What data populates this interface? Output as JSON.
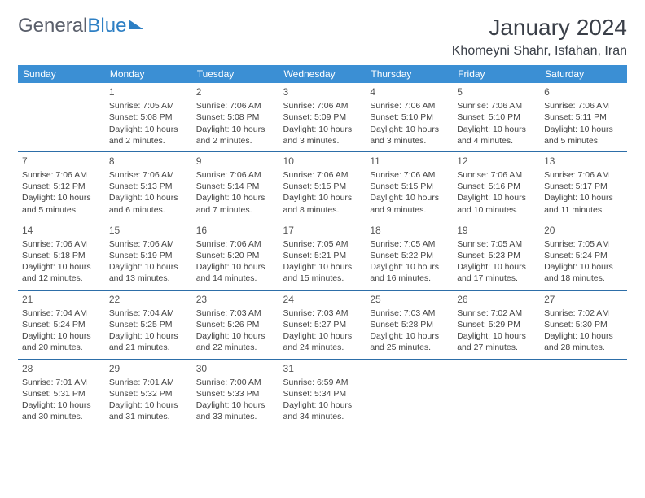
{
  "brand": {
    "part1": "General",
    "part2": "Blue"
  },
  "title": "January 2024",
  "location": "Khomeyni Shahr, Isfahan, Iran",
  "colors": {
    "header_bg": "#3b8fd4",
    "header_text": "#ffffff",
    "rule": "#2d6ea8",
    "text": "#444444",
    "title_text": "#3a3f48"
  },
  "weekdays": [
    "Sunday",
    "Monday",
    "Tuesday",
    "Wednesday",
    "Thursday",
    "Friday",
    "Saturday"
  ],
  "weeks": [
    [
      null,
      {
        "n": "1",
        "sr": "7:05 AM",
        "ss": "5:08 PM",
        "dl": "10 hours and 2 minutes."
      },
      {
        "n": "2",
        "sr": "7:06 AM",
        "ss": "5:08 PM",
        "dl": "10 hours and 2 minutes."
      },
      {
        "n": "3",
        "sr": "7:06 AM",
        "ss": "5:09 PM",
        "dl": "10 hours and 3 minutes."
      },
      {
        "n": "4",
        "sr": "7:06 AM",
        "ss": "5:10 PM",
        "dl": "10 hours and 3 minutes."
      },
      {
        "n": "5",
        "sr": "7:06 AM",
        "ss": "5:10 PM",
        "dl": "10 hours and 4 minutes."
      },
      {
        "n": "6",
        "sr": "7:06 AM",
        "ss": "5:11 PM",
        "dl": "10 hours and 5 minutes."
      }
    ],
    [
      {
        "n": "7",
        "sr": "7:06 AM",
        "ss": "5:12 PM",
        "dl": "10 hours and 5 minutes."
      },
      {
        "n": "8",
        "sr": "7:06 AM",
        "ss": "5:13 PM",
        "dl": "10 hours and 6 minutes."
      },
      {
        "n": "9",
        "sr": "7:06 AM",
        "ss": "5:14 PM",
        "dl": "10 hours and 7 minutes."
      },
      {
        "n": "10",
        "sr": "7:06 AM",
        "ss": "5:15 PM",
        "dl": "10 hours and 8 minutes."
      },
      {
        "n": "11",
        "sr": "7:06 AM",
        "ss": "5:15 PM",
        "dl": "10 hours and 9 minutes."
      },
      {
        "n": "12",
        "sr": "7:06 AM",
        "ss": "5:16 PM",
        "dl": "10 hours and 10 minutes."
      },
      {
        "n": "13",
        "sr": "7:06 AM",
        "ss": "5:17 PM",
        "dl": "10 hours and 11 minutes."
      }
    ],
    [
      {
        "n": "14",
        "sr": "7:06 AM",
        "ss": "5:18 PM",
        "dl": "10 hours and 12 minutes."
      },
      {
        "n": "15",
        "sr": "7:06 AM",
        "ss": "5:19 PM",
        "dl": "10 hours and 13 minutes."
      },
      {
        "n": "16",
        "sr": "7:06 AM",
        "ss": "5:20 PM",
        "dl": "10 hours and 14 minutes."
      },
      {
        "n": "17",
        "sr": "7:05 AM",
        "ss": "5:21 PM",
        "dl": "10 hours and 15 minutes."
      },
      {
        "n": "18",
        "sr": "7:05 AM",
        "ss": "5:22 PM",
        "dl": "10 hours and 16 minutes."
      },
      {
        "n": "19",
        "sr": "7:05 AM",
        "ss": "5:23 PM",
        "dl": "10 hours and 17 minutes."
      },
      {
        "n": "20",
        "sr": "7:05 AM",
        "ss": "5:24 PM",
        "dl": "10 hours and 18 minutes."
      }
    ],
    [
      {
        "n": "21",
        "sr": "7:04 AM",
        "ss": "5:24 PM",
        "dl": "10 hours and 20 minutes."
      },
      {
        "n": "22",
        "sr": "7:04 AM",
        "ss": "5:25 PM",
        "dl": "10 hours and 21 minutes."
      },
      {
        "n": "23",
        "sr": "7:03 AM",
        "ss": "5:26 PM",
        "dl": "10 hours and 22 minutes."
      },
      {
        "n": "24",
        "sr": "7:03 AM",
        "ss": "5:27 PM",
        "dl": "10 hours and 24 minutes."
      },
      {
        "n": "25",
        "sr": "7:03 AM",
        "ss": "5:28 PM",
        "dl": "10 hours and 25 minutes."
      },
      {
        "n": "26",
        "sr": "7:02 AM",
        "ss": "5:29 PM",
        "dl": "10 hours and 27 minutes."
      },
      {
        "n": "27",
        "sr": "7:02 AM",
        "ss": "5:30 PM",
        "dl": "10 hours and 28 minutes."
      }
    ],
    [
      {
        "n": "28",
        "sr": "7:01 AM",
        "ss": "5:31 PM",
        "dl": "10 hours and 30 minutes."
      },
      {
        "n": "29",
        "sr": "7:01 AM",
        "ss": "5:32 PM",
        "dl": "10 hours and 31 minutes."
      },
      {
        "n": "30",
        "sr": "7:00 AM",
        "ss": "5:33 PM",
        "dl": "10 hours and 33 minutes."
      },
      {
        "n": "31",
        "sr": "6:59 AM",
        "ss": "5:34 PM",
        "dl": "10 hours and 34 minutes."
      },
      null,
      null,
      null
    ]
  ],
  "labels": {
    "sunrise": "Sunrise:",
    "sunset": "Sunset:",
    "daylight": "Daylight:"
  }
}
